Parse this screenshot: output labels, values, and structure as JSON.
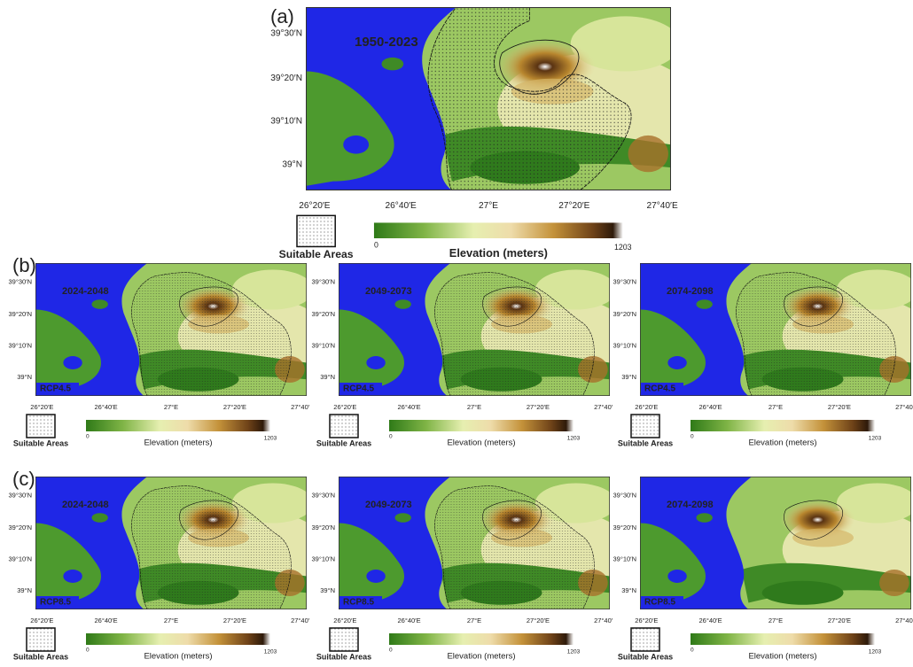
{
  "panels": [
    {
      "label": "(a)",
      "period": "1950-2023",
      "lat_ticks": [
        "39°30′N",
        "39°20′N",
        "39°10′N",
        "39°N"
      ],
      "lon_ticks": [
        "26°20′E",
        "26°40′E",
        "27°E",
        "27°20′E",
        "27°40′E"
      ],
      "legend": {
        "suitable": "Suitable Areas",
        "colorbar_title": "Elevation (meters)",
        "colorbar_min": 0,
        "colorbar_max": 1203
      }
    },
    {
      "label": "(b)",
      "period": "2024-2048",
      "scenario": "RCP4.5",
      "lat_ticks": [
        "39°30′N",
        "39°20′N",
        "39°10′N",
        "39°N"
      ],
      "lon_ticks": [
        "26°20′E",
        "26°40′E",
        "27°E",
        "27°20′E",
        "27°40′"
      ],
      "legend": {
        "suitable": "Suitable Areas",
        "colorbar_title": "Elevation (meters)",
        "colorbar_min": 0,
        "colorbar_max": 1203
      }
    },
    {
      "period": "2049-2073",
      "scenario": "RCP4.5",
      "lat_ticks": [
        "39°30′N",
        "39°20′N",
        "39°10′N",
        "39°N"
      ],
      "lon_ticks": [
        "26°20′E",
        "26°40′E",
        "27°E",
        "27°20′E",
        "27°40′"
      ],
      "legend": {
        "suitable": "Suitable Areas",
        "colorbar_title": "Elevation (meters)",
        "colorbar_min": 0,
        "colorbar_max": 1203
      }
    },
    {
      "period": "2074-2098",
      "scenario": "RCP4.5",
      "lat_ticks": [
        "39°30′N",
        "39°20′N",
        "39°10′N",
        "39°N"
      ],
      "lon_ticks": [
        "26°20′E",
        "26°40′E",
        "27°E",
        "27°20′E",
        "27°40′"
      ],
      "legend": {
        "suitable": "Suitable Areas",
        "colorbar_title": "Elevation (meters)",
        "colorbar_min": 0,
        "colorbar_max": 1203
      }
    },
    {
      "label": "(c)",
      "period": "2024-2048",
      "scenario": "RCP8.5",
      "lat_ticks": [
        "39°30′N",
        "39°20′N",
        "39°10′N",
        "39°N"
      ],
      "lon_ticks": [
        "26°20′E",
        "26°40′E",
        "27°E",
        "27°20′E",
        "27°40′"
      ],
      "legend": {
        "suitable": "Suitable Areas",
        "colorbar_title": "Elevation (meters)",
        "colorbar_min": 0,
        "colorbar_max": 1203
      }
    },
    {
      "period": "2049-2073",
      "scenario": "RCP8.5",
      "lat_ticks": [
        "39°30′N",
        "39°20′N",
        "39°10′N",
        "39°N"
      ],
      "lon_ticks": [
        "26°20′E",
        "26°40′E",
        "27°E",
        "27°20′E",
        "27°40′"
      ],
      "legend": {
        "suitable": "Suitable Areas",
        "colorbar_title": "Elevation (meters)",
        "colorbar_min": 0,
        "colorbar_max": 1203
      }
    },
    {
      "period": "2074-2098",
      "scenario": "RCP8.5",
      "lat_ticks": [
        "39°30′N",
        "39°20′N",
        "39°10′N",
        "39°N"
      ],
      "lon_ticks": [
        "26°20′E",
        "26°40′E",
        "27°E",
        "27°20′E",
        "27°40′"
      ],
      "legend": {
        "suitable": "Suitable Areas",
        "colorbar_title": "Elevation (meters)",
        "colorbar_min": 0,
        "colorbar_max": 1203
      }
    }
  ]
}
